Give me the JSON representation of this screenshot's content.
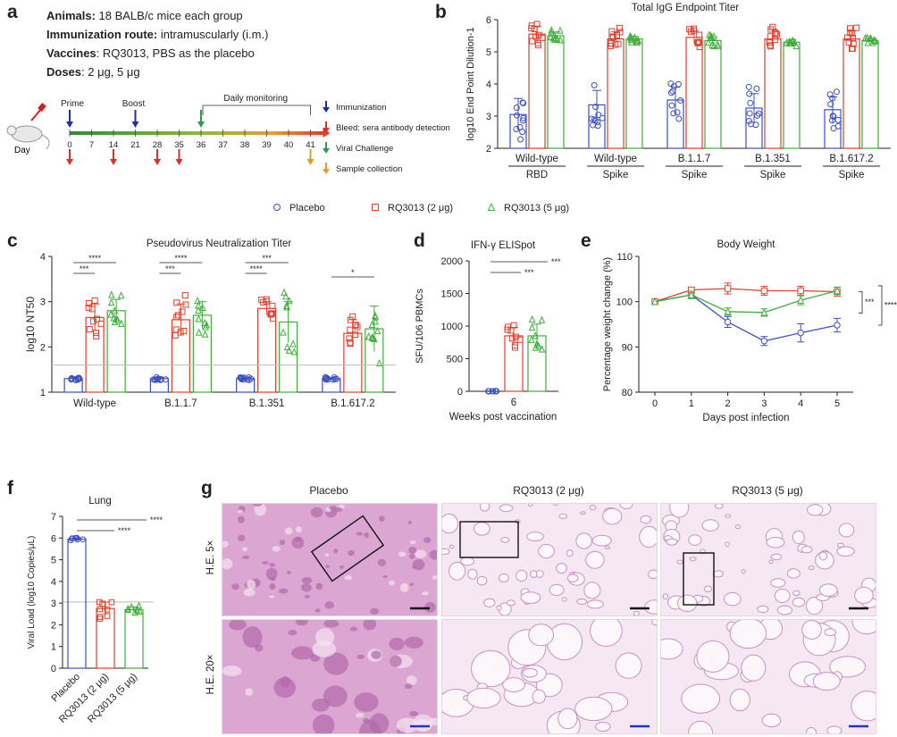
{
  "panel_labels": {
    "a": "a",
    "b": "b",
    "c": "c",
    "d": "d",
    "e": "e",
    "f": "f",
    "g": "g"
  },
  "protocol": [
    {
      "key": "Animals:",
      "text": " 18 BALB/c mice each group"
    },
    {
      "key": "Immunization route:",
      "text": " intramuscularly (i.m.)"
    },
    {
      "key": "Vaccines",
      "text": ": RQ3013, PBS as the placebo"
    },
    {
      "key": "Doses",
      "text": ": 2 μg, 5 μg"
    }
  ],
  "timeline": {
    "day_label": "Day",
    "prime": "Prime",
    "boost": "Boost",
    "monitoring": "Daily monitoring",
    "days": [
      "0",
      "7",
      "14",
      "21",
      "28",
      "35",
      "36",
      "37",
      "38",
      "39",
      "40",
      "41"
    ],
    "legend": [
      {
        "label": "Immunization",
        "color": "#1f2f9e"
      },
      {
        "label": "Bleed: sera antibody detection",
        "color": "#d9302a"
      },
      {
        "label": "Viral Challenge",
        "color": "#2a9a52"
      },
      {
        "label": "Sample collection",
        "color": "#e39a2c"
      }
    ]
  },
  "legend": [
    {
      "label": "Placebo",
      "color": "#3a4fc4",
      "marker": "circle"
    },
    {
      "label": "RQ3013 (2 μg)",
      "color": "#e0402e",
      "marker": "square"
    },
    {
      "label": "RQ3013 (5 μg)",
      "color": "#3fae3a",
      "marker": "triangle"
    }
  ],
  "colors": {
    "placebo": "#3a4fc4",
    "rq2": "#e0402e",
    "rq5": "#3fae3a",
    "gray": "#bbbbbb"
  },
  "chart_data": [
    {
      "id": "b",
      "type": "bar",
      "title": "Total IgG Endpoint Titer",
      "ylabel": "log10 End Point Dilution-1",
      "ylim": [
        2,
        6
      ],
      "yticks": [
        2,
        3,
        4,
        5,
        6
      ],
      "categories": [
        [
          "Wild-type",
          "RBD"
        ],
        [
          "Wild-type",
          "Spike"
        ],
        [
          "B.1.1.7",
          "Spike"
        ],
        [
          "B.1.351",
          "Spike"
        ],
        [
          "B.1.617.2",
          "Spike"
        ]
      ],
      "series": [
        {
          "name": "Placebo",
          "values": [
            3.05,
            3.35,
            3.5,
            3.25,
            3.2
          ],
          "sd": [
            0.5,
            0.45,
            0.4,
            0.45,
            0.4
          ]
        },
        {
          "name": "RQ3013 (2 μg)",
          "values": [
            5.55,
            5.4,
            5.45,
            5.4,
            5.4
          ],
          "sd": [
            0.25,
            0.22,
            0.2,
            0.3,
            0.25
          ]
        },
        {
          "name": "RQ3013 (5 μg)",
          "values": [
            5.5,
            5.4,
            5.35,
            5.3,
            5.35
          ],
          "sd": [
            0.12,
            0.08,
            0.12,
            0.08,
            0.05
          ]
        }
      ]
    },
    {
      "id": "c",
      "type": "bar",
      "title": "Pseudovirus Neutralization Titer",
      "ylabel": "log10 NT50",
      "ylim": [
        1,
        4
      ],
      "yticks": [
        1,
        2,
        3,
        4
      ],
      "threshold": 1.6,
      "categories": [
        "Wild-type",
        "B.1.1.7",
        "B.1.351",
        "B.1.617.2"
      ],
      "series": [
        {
          "name": "Placebo",
          "values": [
            1.3,
            1.3,
            1.3,
            1.3
          ],
          "sd": [
            0.02,
            0.02,
            0.02,
            0.02
          ]
        },
        {
          "name": "RQ3013 (2 μg)",
          "values": [
            2.65,
            2.6,
            2.85,
            2.3
          ],
          "sd": [
            0.3,
            0.35,
            0.15,
            0.3
          ]
        },
        {
          "name": "RQ3013 (5 μg)",
          "values": [
            2.8,
            2.7,
            2.55,
            2.4
          ],
          "sd": [
            0.25,
            0.3,
            0.45,
            0.5
          ]
        }
      ],
      "significance": [
        "****",
        "***",
        "****",
        "***",
        "***",
        "****",
        "*"
      ]
    },
    {
      "id": "d",
      "type": "bar",
      "title": "IFN-γ ELISpot",
      "ylabel": "SFU/106 PBMCs",
      "xlabel": "Weeks post vaccination",
      "ylim": [
        0,
        2000
      ],
      "yticks": [
        0,
        500,
        1000,
        1500,
        2000
      ],
      "categories": [
        "6"
      ],
      "series": [
        {
          "name": "Placebo",
          "values": [
            0
          ],
          "sd": [
            5
          ]
        },
        {
          "name": "RQ3013 (2 μg)",
          "values": [
            850
          ],
          "sd": [
            130
          ]
        },
        {
          "name": "RQ3013 (5 μg)",
          "values": [
            850
          ],
          "sd": [
            180
          ]
        }
      ],
      "significance": [
        "***",
        "***"
      ]
    },
    {
      "id": "e",
      "type": "line",
      "title": "Body Weight",
      "ylabel": "Percentage weight change (%)",
      "xlabel": "Days post infection",
      "ylim": [
        80,
        110
      ],
      "yticks": [
        80,
        90,
        100,
        110
      ],
      "x": [
        0,
        1,
        2,
        3,
        4,
        5
      ],
      "series": [
        {
          "name": "Placebo",
          "values": [
            100,
            101.5,
            95.5,
            91.3,
            93.1,
            94.8
          ],
          "sd": [
            0,
            0.8,
            1.2,
            1,
            2,
            1.5
          ]
        },
        {
          "name": "RQ3013 (2 μg)",
          "values": [
            100,
            102.6,
            102.9,
            102.4,
            102.4,
            102.2
          ],
          "sd": [
            0,
            0.5,
            1.2,
            1,
            1,
            1
          ]
        },
        {
          "name": "RQ3013 (5 μg)",
          "values": [
            100,
            101.5,
            97.8,
            97.6,
            100.3,
            102.4
          ],
          "sd": [
            0,
            0.8,
            0.8,
            0.8,
            1,
            0.8
          ]
        }
      ],
      "significance": [
        "***",
        "****"
      ]
    },
    {
      "id": "f",
      "type": "bar",
      "title": "Lung",
      "ylabel": "Viral Load (log10 Copies/μL)",
      "ylim": [
        0,
        7
      ],
      "yticks": [
        0,
        1,
        2,
        3,
        4,
        5,
        6,
        7
      ],
      "threshold": 3.05,
      "categories": [
        "Placebo",
        "RQ3013 (2 μg)",
        "RQ3013 (5 μg)"
      ],
      "series": [
        {
          "name": "Viral Load",
          "values": [
            5.95,
            2.75,
            2.7
          ],
          "sd": [
            0.05,
            0.3,
            0.12
          ]
        }
      ],
      "significance": [
        "****",
        "****"
      ]
    }
  ],
  "histology": {
    "columns": [
      "Placebo",
      "RQ3013 (2 μg)",
      "RQ3013 (5 μg)"
    ],
    "rows": [
      "H.E. 5×",
      "H.E. 20×"
    ]
  }
}
